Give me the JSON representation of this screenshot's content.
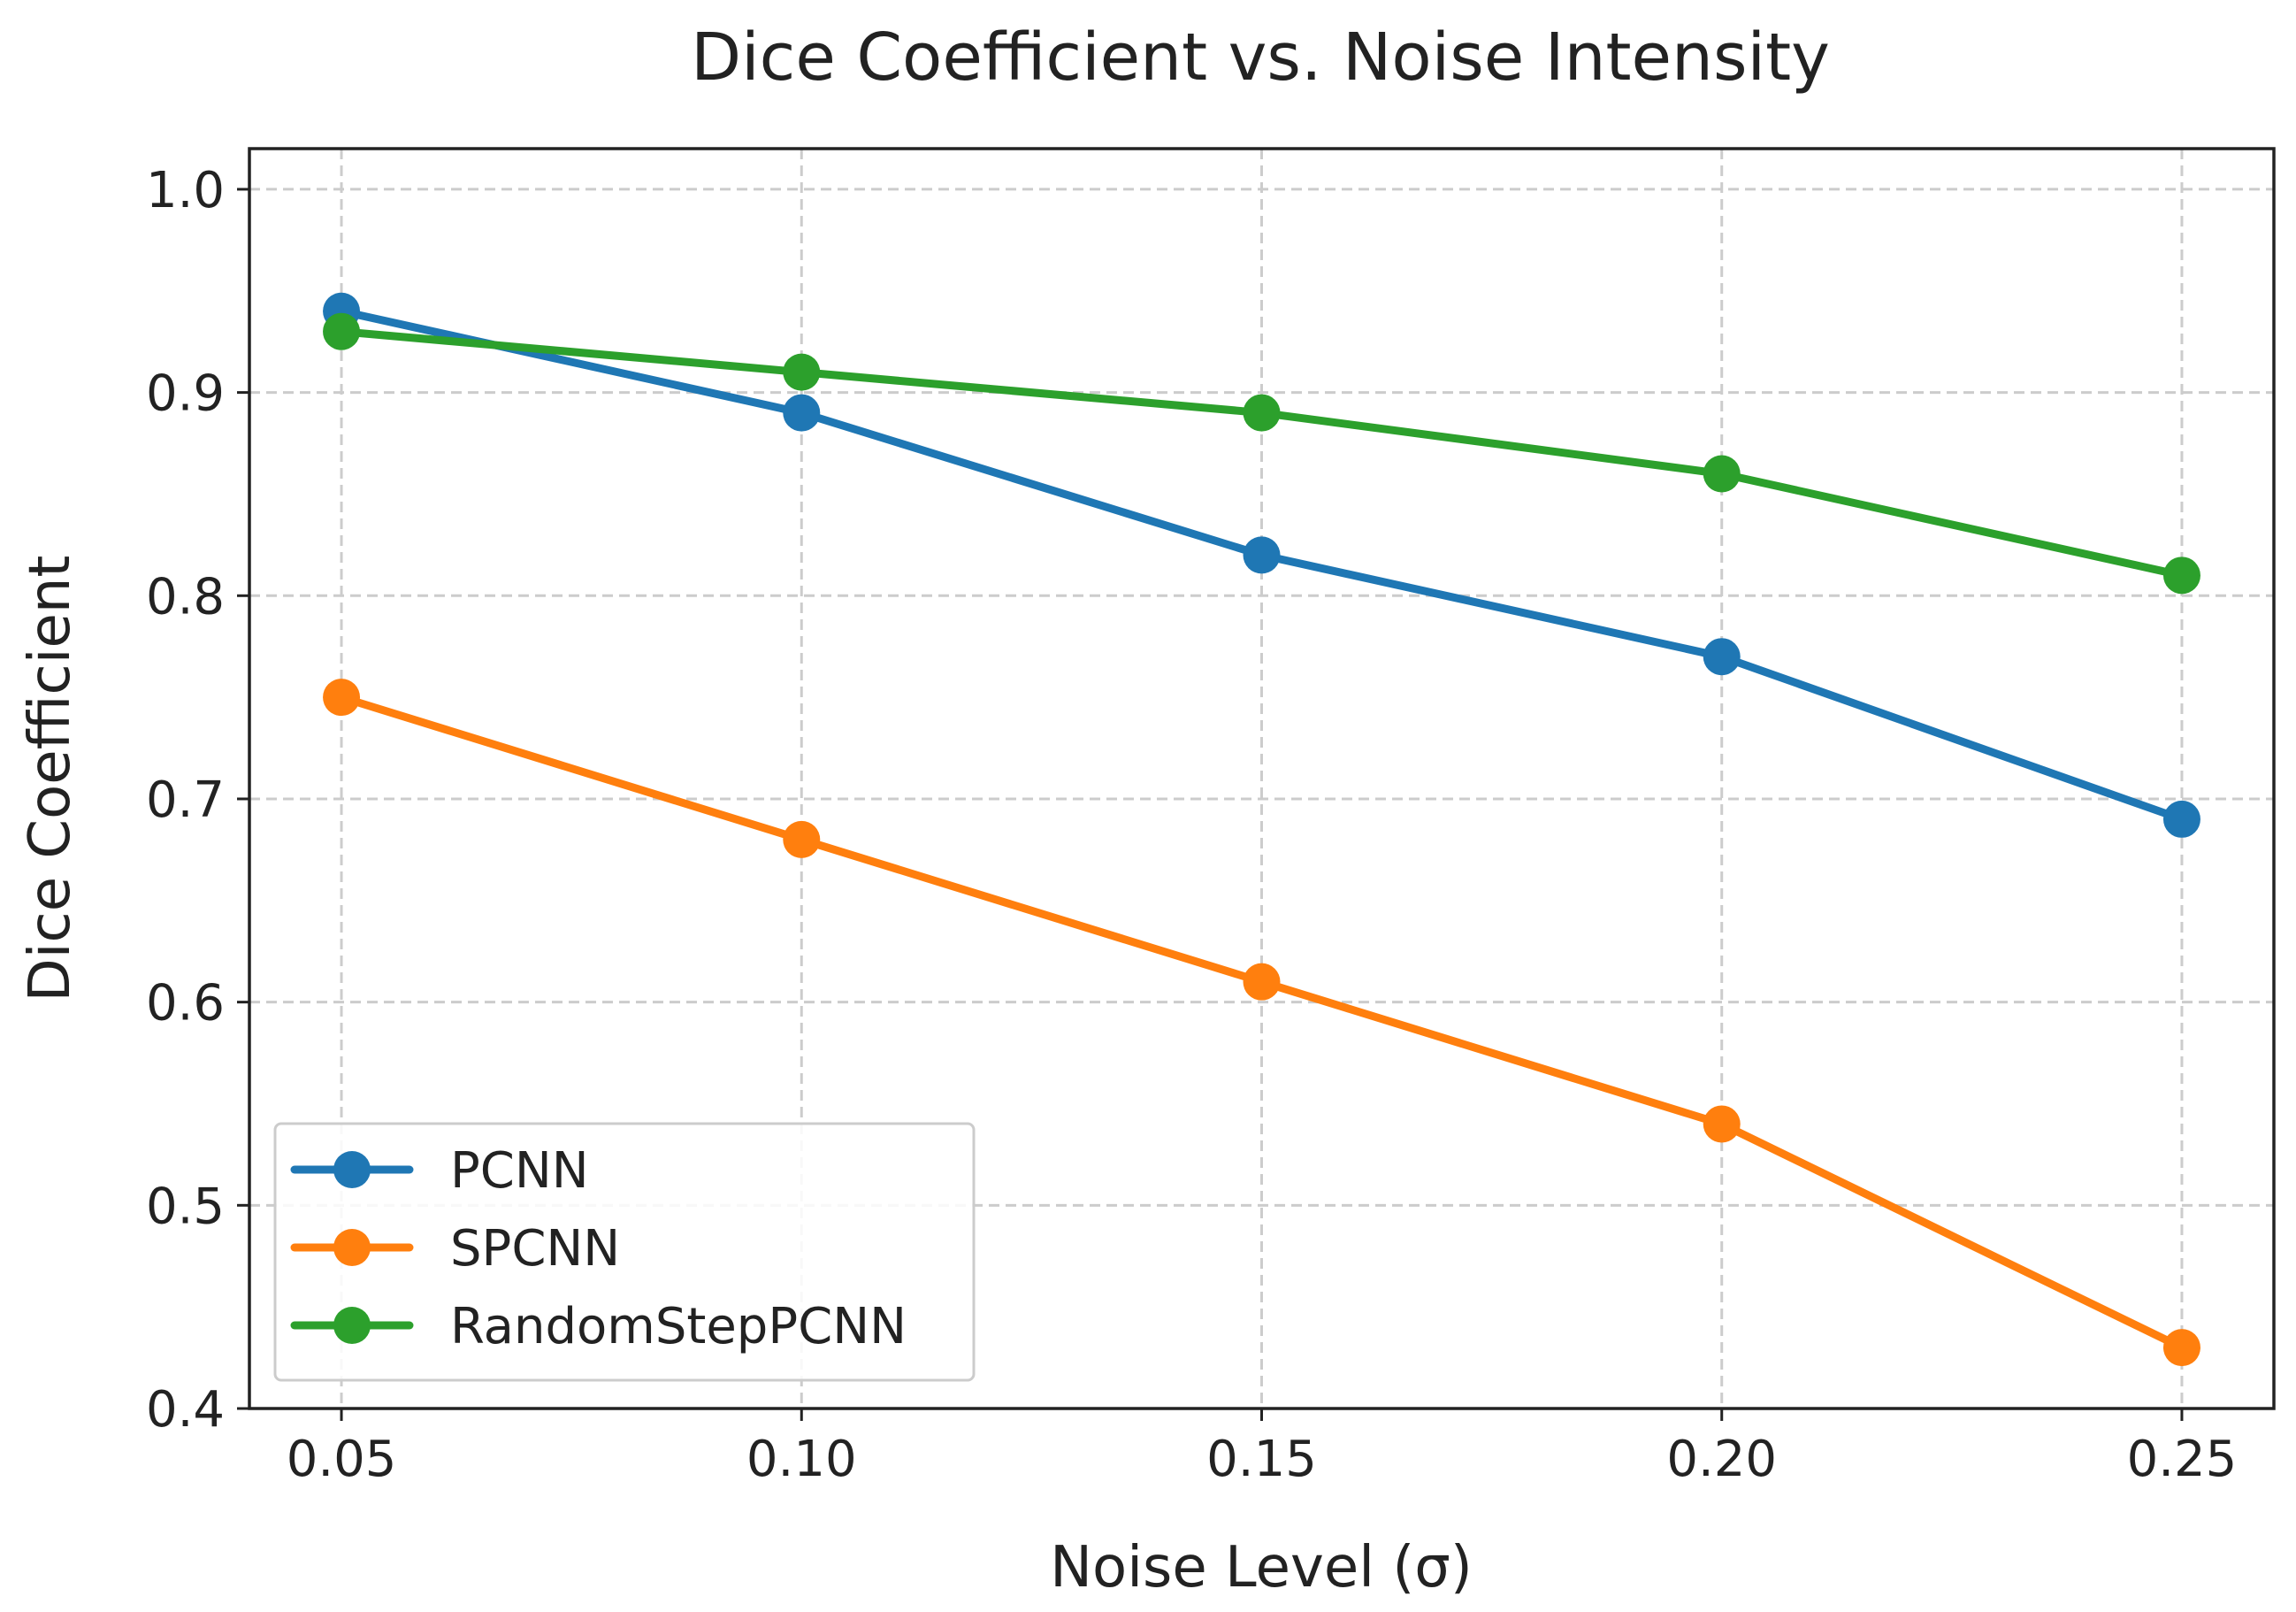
{
  "chart_data": {
    "type": "line",
    "title": "Dice Coefficient vs. Noise Intensity",
    "xlabel": "Noise Level (σ)",
    "ylabel": "Dice Coefficient",
    "x": [
      0.05,
      0.1,
      0.15,
      0.2,
      0.25
    ],
    "x_tick_labels": [
      "0.05",
      "0.10",
      "0.15",
      "0.20",
      "0.25"
    ],
    "y_ticks": [
      0.4,
      0.5,
      0.6,
      0.7,
      0.8,
      0.9,
      1.0
    ],
    "y_tick_labels": [
      "0.4",
      "0.5",
      "0.6",
      "0.7",
      "0.8",
      "0.9",
      "1.0"
    ],
    "xlim": [
      0.04,
      0.26
    ],
    "ylim": [
      0.4,
      1.02
    ],
    "grid": true,
    "legend_position": "lower-left",
    "series": [
      {
        "name": "PCNN",
        "color": "#1f77b4",
        "values": [
          0.94,
          0.89,
          0.82,
          0.77,
          0.69
        ]
      },
      {
        "name": "SPCNN",
        "color": "#ff7f0e",
        "values": [
          0.75,
          0.68,
          0.61,
          0.54,
          0.43
        ]
      },
      {
        "name": "RandomStepPCNN",
        "color": "#2ca02c",
        "values": [
          0.93,
          0.91,
          0.89,
          0.86,
          0.81
        ]
      }
    ]
  }
}
